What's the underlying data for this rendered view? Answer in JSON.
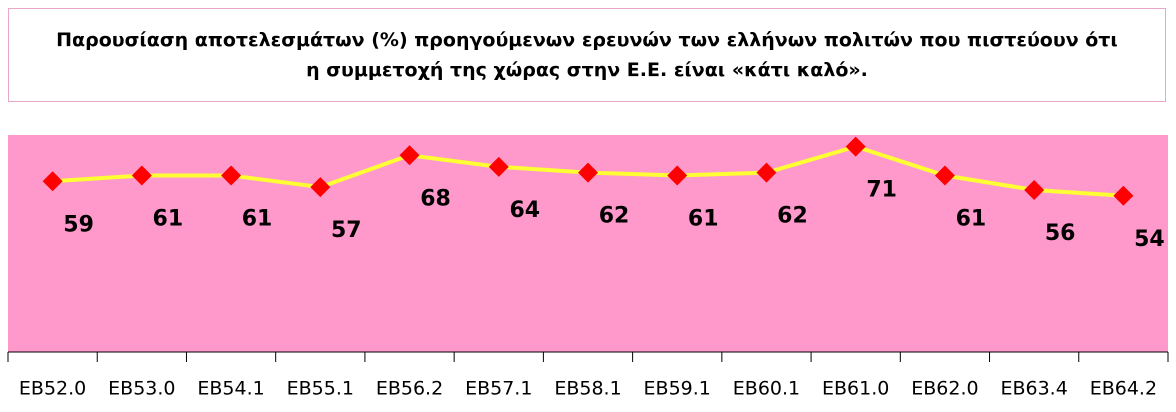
{
  "chart_data": {
    "type": "line",
    "title": "Παρουσίαση αποτελεσμάτων (%) προηγούμενων ερευνών των ελλήνων πολιτών που πιστεύουν ότι η συμμετοχή της χώρας στην Ε.Ε. είναι «κάτι καλό».",
    "categories": [
      "EB52.0",
      "EB53.0",
      "EB54.1",
      "EB55.1",
      "EB56.2",
      "EB57.1",
      "EB58.1",
      "EB59.1",
      "EB60.1",
      "EB61.0",
      "EB62.0",
      "EB63.4",
      "EB64.2"
    ],
    "values": [
      59,
      61,
      61,
      57,
      68,
      64,
      62,
      61,
      62,
      71,
      61,
      56,
      54
    ],
    "color": "#ffff33",
    "marker_color": "#ff0000",
    "background": "#ff99cc",
    "ylim": [
      0,
      75
    ]
  }
}
